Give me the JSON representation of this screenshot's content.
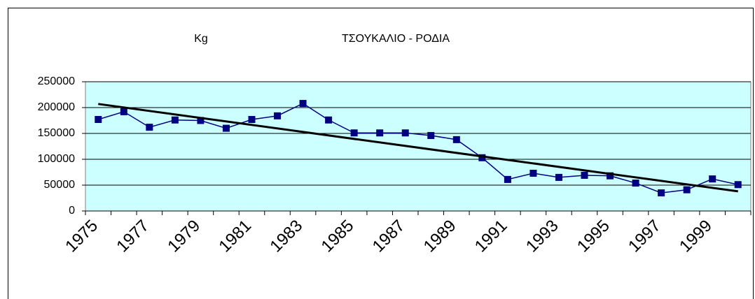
{
  "chart_data": {
    "type": "line",
    "title": "ΤΣΟΥΚΑΛΙΟ - ΡΟΔΙΑ",
    "y_label": "Kg",
    "categories": [
      "1975",
      null,
      "1977",
      null,
      "1979",
      null,
      "1981",
      null,
      "1983",
      null,
      "1985",
      null,
      "1987",
      null,
      "1989",
      null,
      "1991",
      null,
      "1993",
      null,
      "1995",
      null,
      "1997",
      null,
      "1999",
      null
    ],
    "series": [
      {
        "color": "#000080",
        "values": [
          177000,
          192000,
          162000,
          176000,
          175000,
          160000,
          177000,
          184000,
          208000,
          176000,
          151000,
          151000,
          151000,
          146000,
          138000,
          103000,
          61000,
          73000,
          65000,
          69000,
          68000,
          54000,
          35000,
          41000,
          62000,
          51000
        ]
      }
    ],
    "trend": {
      "color": "#000000",
      "values": [
        207000,
        38000
      ]
    },
    "ylim": [
      0,
      250000
    ],
    "yticks": [
      0,
      50000,
      100000,
      150000,
      200000,
      250000
    ],
    "grid": true
  }
}
